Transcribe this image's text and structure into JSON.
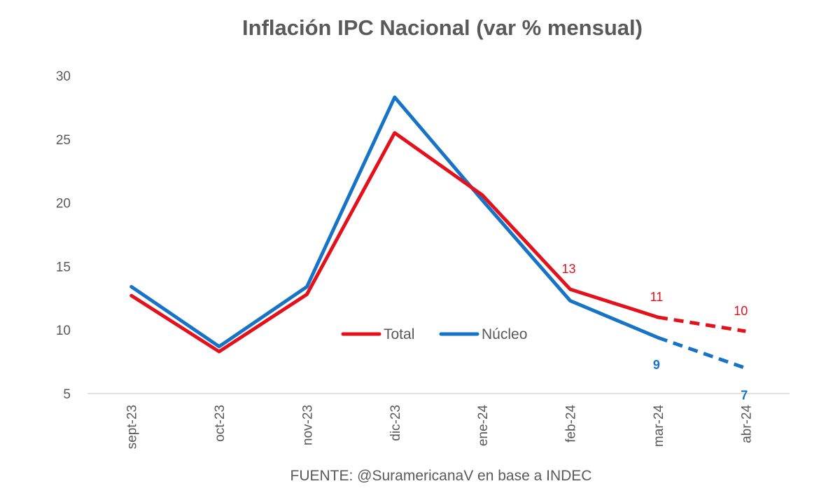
{
  "chart_data": {
    "type": "line",
    "title": "Inflación IPC Nacional (var % mensual)",
    "xlabel": "",
    "ylabel": "",
    "categories": [
      "sept-23",
      "oct-23",
      "nov-23",
      "dic-23",
      "ene-24",
      "feb-24",
      "mar-24",
      "abr-24"
    ],
    "y_ticks": [
      "5",
      "10",
      "15",
      "20",
      "25",
      "30"
    ],
    "ylim": [
      5,
      30
    ],
    "grid": false,
    "legend": "center",
    "series": [
      {
        "name": "Total",
        "color": "#e3111b",
        "values": [
          12.7,
          8.3,
          12.8,
          25.5,
          20.6,
          13.2,
          11.0,
          9.9
        ],
        "projected_from_index": 6,
        "data_labels": [
          {
            "index": 5,
            "text": "13"
          },
          {
            "index": 6,
            "text": "11"
          },
          {
            "index": 7,
            "text": "10"
          }
        ]
      },
      {
        "name": "Núcleo",
        "color": "#1673c6",
        "values": [
          13.4,
          8.7,
          13.4,
          28.3,
          20.2,
          12.3,
          9.4,
          7.0
        ],
        "projected_from_index": 6,
        "data_labels": [
          {
            "index": 6,
            "text": "9"
          },
          {
            "index": 7,
            "text": "7"
          }
        ]
      }
    ],
    "source": "FUENTE: @SuramericanaV en base a INDEC"
  }
}
